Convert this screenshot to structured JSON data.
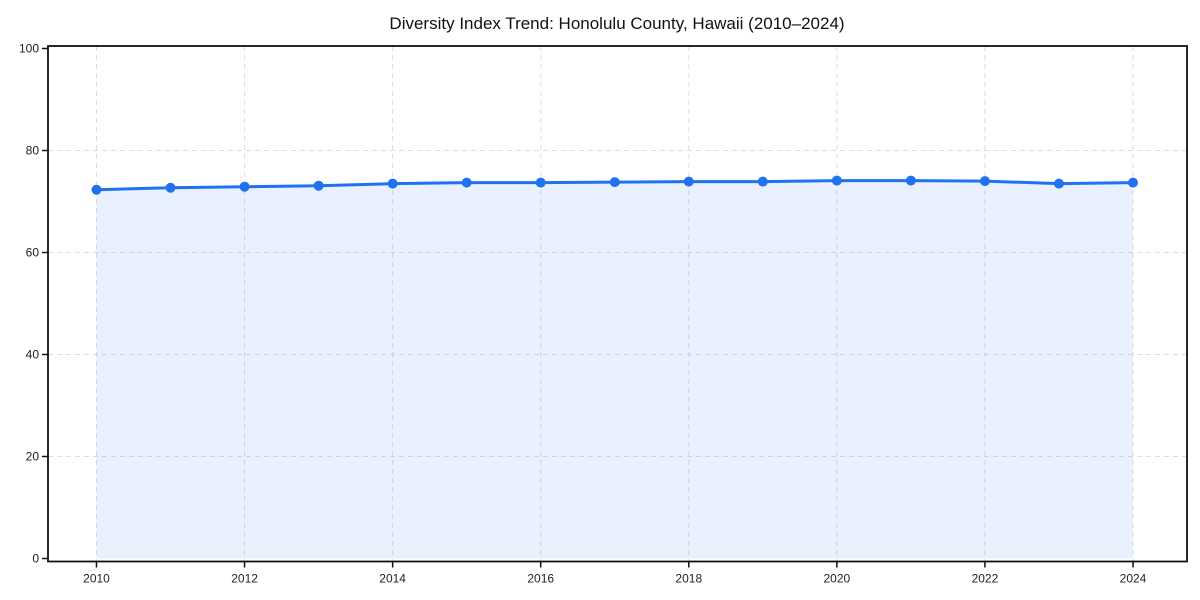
{
  "chart_data": {
    "type": "line",
    "title": "Diversity Index Trend: Honolulu County, Hawaii (2010–2024)",
    "x": [
      2010,
      2011,
      2012,
      2013,
      2014,
      2015,
      2016,
      2017,
      2018,
      2019,
      2020,
      2021,
      2022,
      2023,
      2024
    ],
    "values": [
      72.3,
      72.7,
      72.9,
      73.1,
      73.5,
      73.7,
      73.7,
      73.8,
      73.9,
      73.9,
      74.1,
      74.1,
      74.0,
      73.5,
      73.7
    ],
    "xlabel": "",
    "ylabel": "",
    "ylim": [
      0,
      100
    ],
    "yticks": [
      0,
      20,
      40,
      60,
      80,
      100
    ],
    "xticks": [
      2010,
      2012,
      2014,
      2016,
      2018,
      2020,
      2022,
      2024
    ],
    "grid": true,
    "grid_style": "dashed",
    "legend": false,
    "marker": "circle",
    "colors": {
      "line": "#2172f0",
      "marker": "#2172f0",
      "fill": "#2273f0",
      "fill_opacity": "0.10",
      "grid": "#dedede",
      "spine": "#111111",
      "tick_label": "#222222",
      "title": "#111111",
      "background": "#ffffff"
    }
  }
}
